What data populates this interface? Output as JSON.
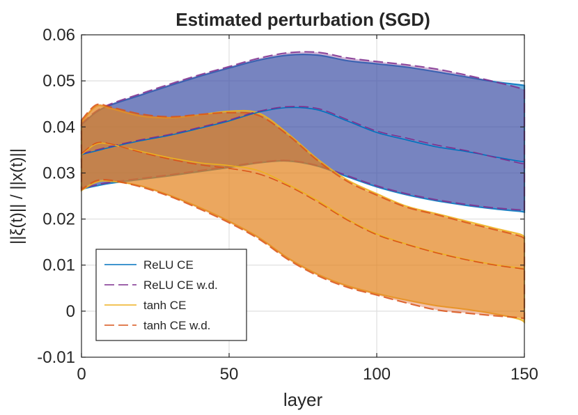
{
  "chart_data": {
    "type": "area",
    "title": "Estimated perturbation (SGD)",
    "xlabel": "layer",
    "ylabel": "||ξ(t)|| / ||x(t)||",
    "xlim": [
      0,
      150
    ],
    "ylim": [
      -0.01,
      0.06
    ],
    "xticks": [
      0,
      50,
      100,
      150
    ],
    "xtick_labels": [
      "0",
      "50",
      "100",
      "150"
    ],
    "yticks": [
      -0.01,
      0,
      0.01,
      0.02,
      0.03,
      0.04,
      0.05,
      0.06
    ],
    "ytick_labels": [
      "-0.01",
      "0",
      "0.01",
      "0.02",
      "0.03",
      "0.04",
      "0.05",
      "0.06"
    ],
    "grid": true,
    "legend_position": "bottom-left",
    "x": [
      0,
      5,
      10,
      20,
      30,
      40,
      50,
      60,
      70,
      80,
      90,
      100,
      110,
      120,
      130,
      140,
      148,
      150
    ],
    "series": [
      {
        "name": "ReLU CE",
        "color": "#0072BD",
        "dashed": false,
        "mean": [
          0.034,
          0.0348,
          0.0356,
          0.037,
          0.0382,
          0.0397,
          0.0413,
          0.0432,
          0.0442,
          0.0437,
          0.0413,
          0.0388,
          0.0372,
          0.0357,
          0.0347,
          0.0335,
          0.0326,
          0.0325
        ],
        "upper": [
          0.0405,
          0.0432,
          0.0448,
          0.0469,
          0.049,
          0.051,
          0.0528,
          0.0545,
          0.0556,
          0.0556,
          0.0544,
          0.0537,
          0.053,
          0.052,
          0.0509,
          0.0498,
          0.0492,
          0.049
        ],
        "lower": [
          0.0265,
          0.0272,
          0.0278,
          0.0286,
          0.0294,
          0.0303,
          0.0312,
          0.0322,
          0.0326,
          0.0315,
          0.0292,
          0.027,
          0.0253,
          0.024,
          0.023,
          0.0222,
          0.0217,
          0.0215
        ]
      },
      {
        "name": "ReLU CE w.d.",
        "color": "#7E2F8E",
        "dashed": true,
        "mean": [
          0.0342,
          0.035,
          0.0358,
          0.0372,
          0.0384,
          0.0399,
          0.0415,
          0.0434,
          0.0444,
          0.044,
          0.0416,
          0.0391,
          0.0376,
          0.0361,
          0.0349,
          0.0334,
          0.0322,
          0.032
        ],
        "upper": [
          0.0407,
          0.0434,
          0.045,
          0.0472,
          0.0493,
          0.0513,
          0.0531,
          0.0549,
          0.0561,
          0.0562,
          0.055,
          0.0542,
          0.0535,
          0.0526,
          0.0513,
          0.0498,
          0.0485,
          0.048
        ],
        "lower": [
          0.0267,
          0.0274,
          0.028,
          0.0288,
          0.0296,
          0.0305,
          0.0314,
          0.0323,
          0.0327,
          0.0316,
          0.0294,
          0.0272,
          0.0255,
          0.0242,
          0.0232,
          0.0224,
          0.022,
          0.0218
        ]
      },
      {
        "name": "tanh CE",
        "color": "#EDB120",
        "dashed": false,
        "mean": [
          0.034,
          0.0363,
          0.0362,
          0.0347,
          0.0333,
          0.0322,
          0.0316,
          0.0305,
          0.0275,
          0.024,
          0.02,
          0.0168,
          0.0146,
          0.0128,
          0.0113,
          0.0101,
          0.0094,
          0.0092
        ],
        "upper": [
          0.041,
          0.0445,
          0.044,
          0.0424,
          0.042,
          0.0426,
          0.0434,
          0.043,
          0.0385,
          0.033,
          0.0285,
          0.0255,
          0.0228,
          0.0212,
          0.0196,
          0.018,
          0.0168,
          0.0162
        ],
        "lower": [
          0.0262,
          0.028,
          0.0282,
          0.0272,
          0.0251,
          0.0225,
          0.0195,
          0.016,
          0.0115,
          0.008,
          0.0055,
          0.0038,
          0.0024,
          0.0012,
          0.0004,
          -0.0006,
          -0.0017,
          -0.0024
        ]
      },
      {
        "name": "tanh CE w.d.",
        "color": "#D95319",
        "dashed": true,
        "mean": [
          0.0342,
          0.0365,
          0.0363,
          0.0345,
          0.033,
          0.0318,
          0.031,
          0.0298,
          0.0272,
          0.0237,
          0.0198,
          0.0166,
          0.0145,
          0.0127,
          0.0112,
          0.01,
          0.0093,
          0.0091
        ],
        "upper": [
          0.0415,
          0.0448,
          0.0443,
          0.0428,
          0.0422,
          0.0427,
          0.0431,
          0.0425,
          0.0382,
          0.0327,
          0.0282,
          0.0252,
          0.0226,
          0.021,
          0.0193,
          0.0177,
          0.0164,
          0.0158
        ],
        "lower": [
          0.0264,
          0.0283,
          0.0284,
          0.027,
          0.0249,
          0.0222,
          0.0192,
          0.0157,
          0.0112,
          0.0077,
          0.0052,
          0.0035,
          0.0018,
          0.0003,
          -0.0004,
          -0.001,
          -0.0014,
          -0.0016
        ]
      }
    ]
  }
}
